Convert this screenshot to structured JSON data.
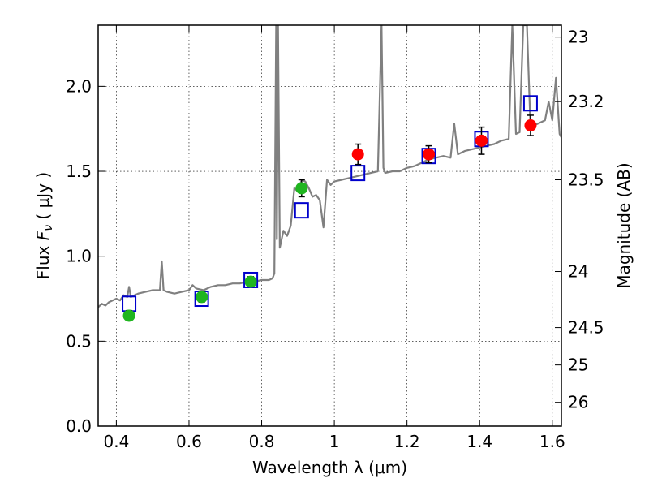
{
  "chart_data": {
    "type": "scatter",
    "xlabel": "Wavelength  λ (μm)",
    "ylabel": "Flux  F_ν  ( μJy )",
    "ylabel_parts": {
      "prefix": "Flux  ",
      "symbol": "F",
      "subscript": "ν",
      "suffix": "  ( μJy )"
    },
    "y2label": "Magnitude (AB)",
    "xlim": [
      0.35,
      1.625
    ],
    "ylim": [
      0.0,
      2.36
    ],
    "grid": true,
    "x_ticks": [
      0.4,
      0.6,
      0.8,
      1.0,
      1.2,
      1.4,
      1.6
    ],
    "x_tick_labels": [
      "0.4",
      "0.6",
      "0.8",
      "1",
      "1.2",
      "1.4",
      "1.6"
    ],
    "y_ticks": [
      0.0,
      0.5,
      1.0,
      1.5,
      2.0
    ],
    "y_tick_labels": [
      "0.0",
      "0.5",
      "1.0",
      "1.5",
      "2.0"
    ],
    "mag_ticks": [
      {
        "label": "23",
        "flux": 2.29
      },
      {
        "label": "23.2",
        "flux": 1.91
      },
      {
        "label": "23.5",
        "flux": 1.45
      },
      {
        "label": "24",
        "flux": 0.91
      },
      {
        "label": "24.5",
        "flux": 0.58
      },
      {
        "label": "25",
        "flux": 0.36
      },
      {
        "label": "26",
        "flux": 0.14
      }
    ],
    "colors": {
      "model": "#808080",
      "green": "#1fb51f",
      "red": "#ff0000",
      "blue": "#0000cc"
    },
    "series": [
      {
        "kind": "model_spectrum",
        "style": "line",
        "x": [
          0.35,
          0.36,
          0.37,
          0.38,
          0.39,
          0.4,
          0.41,
          0.42,
          0.43,
          0.435,
          0.44,
          0.45,
          0.46,
          0.48,
          0.5,
          0.52,
          0.525,
          0.53,
          0.54,
          0.56,
          0.58,
          0.6,
          0.61,
          0.62,
          0.64,
          0.66,
          0.68,
          0.7,
          0.72,
          0.74,
          0.76,
          0.78,
          0.8,
          0.82,
          0.83,
          0.835,
          0.84,
          0.842,
          0.845,
          0.85,
          0.86,
          0.87,
          0.88,
          0.89,
          0.9,
          0.91,
          0.92,
          0.93,
          0.94,
          0.95,
          0.96,
          0.97,
          0.98,
          0.99,
          1.0,
          1.02,
          1.04,
          1.06,
          1.08,
          1.1,
          1.12,
          1.13,
          1.135,
          1.14,
          1.16,
          1.18,
          1.2,
          1.22,
          1.24,
          1.26,
          1.28,
          1.3,
          1.32,
          1.33,
          1.34,
          1.36,
          1.38,
          1.4,
          1.42,
          1.44,
          1.46,
          1.48,
          1.49,
          1.5,
          1.51,
          1.52,
          1.53,
          1.54,
          1.56,
          1.58,
          1.59,
          1.6,
          1.61,
          1.62,
          1.625
        ],
        "y": [
          0.7,
          0.72,
          0.71,
          0.73,
          0.74,
          0.75,
          0.74,
          0.77,
          0.76,
          0.82,
          0.76,
          0.77,
          0.78,
          0.79,
          0.8,
          0.8,
          0.97,
          0.8,
          0.79,
          0.78,
          0.79,
          0.8,
          0.83,
          0.81,
          0.8,
          0.82,
          0.83,
          0.83,
          0.84,
          0.84,
          0.85,
          0.85,
          0.86,
          0.86,
          0.87,
          0.9,
          2.36,
          1.1,
          2.36,
          1.05,
          1.15,
          1.12,
          1.18,
          1.4,
          1.38,
          1.45,
          1.44,
          1.4,
          1.35,
          1.36,
          1.33,
          1.17,
          1.45,
          1.42,
          1.44,
          1.45,
          1.46,
          1.47,
          1.48,
          1.49,
          1.5,
          2.36,
          1.52,
          1.49,
          1.5,
          1.5,
          1.52,
          1.53,
          1.55,
          1.57,
          1.58,
          1.59,
          1.58,
          1.78,
          1.6,
          1.62,
          1.63,
          1.64,
          1.65,
          1.66,
          1.68,
          1.69,
          2.36,
          1.72,
          1.73,
          2.36,
          2.36,
          1.76,
          1.78,
          1.8,
          1.91,
          1.8,
          2.05,
          1.72,
          1.7
        ]
      },
      {
        "kind": "green_points",
        "style": "markers",
        "x": [
          0.435,
          0.635,
          0.77,
          0.91
        ],
        "y": [
          0.65,
          0.76,
          0.85,
          1.4
        ],
        "err": [
          0.03,
          0.03,
          0.03,
          0.05
        ]
      },
      {
        "kind": "red_points",
        "style": "markers",
        "x": [
          1.065,
          1.26,
          1.405,
          1.54
        ],
        "y": [
          1.6,
          1.6,
          1.68,
          1.77
        ],
        "err": [
          0.06,
          0.05,
          0.08,
          0.06
        ]
      },
      {
        "kind": "blue_squares",
        "style": "open_squares",
        "x": [
          0.435,
          0.635,
          0.77,
          0.91,
          1.065,
          1.26,
          1.405,
          1.54
        ],
        "y": [
          0.72,
          0.75,
          0.86,
          1.27,
          1.49,
          1.59,
          1.69,
          1.9
        ]
      }
    ]
  }
}
